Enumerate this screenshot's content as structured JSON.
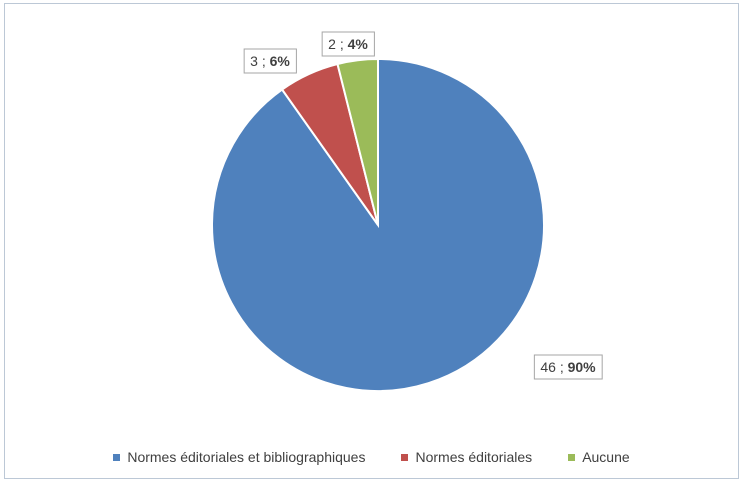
{
  "chart_data": {
    "type": "pie",
    "series": [
      {
        "name": "Normes éditoriales et bibliographiques",
        "value": 46,
        "percent": "90%",
        "color": "#4f81bd"
      },
      {
        "name": "Normes éditoriales",
        "value": 3,
        "percent": "6%",
        "color": "#c0504d"
      },
      {
        "name": "Aucune",
        "value": 2,
        "percent": "4%",
        "color": "#9bbb59"
      }
    ],
    "data_labels": [
      "46",
      "3",
      "2"
    ],
    "data_label_separator": " ; ",
    "legend_placement": "bottom"
  }
}
